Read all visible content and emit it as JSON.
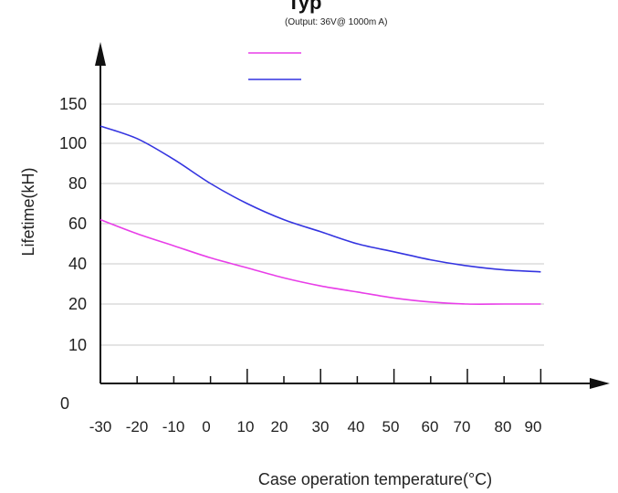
{
  "chart_data": {
    "type": "line",
    "title": "Typ",
    "subtitle": "(Output:  36V@  1000m  A)",
    "xlabel": "Case  operation  temperature(°C)",
    "ylabel": "Lifetime(kH)",
    "origin_label": "0",
    "x_ticks": [
      "-30",
      "-20",
      "-10",
      "0",
      "10",
      "20",
      "30",
      "40",
      "50",
      "60",
      "70",
      "80",
      "90"
    ],
    "y_ticks": [
      "10",
      "20",
      "40",
      "60",
      "80",
      "100",
      "150"
    ],
    "grid": true,
    "legend": {
      "placement": "top-center",
      "entries": [
        {
          "color": "#e83ee8"
        },
        {
          "color": "#3434e0"
        }
      ]
    },
    "series": [
      {
        "color": "#e83ee8",
        "x": [
          -30,
          -20,
          -10,
          0,
          10,
          20,
          30,
          40,
          50,
          60,
          70,
          80,
          90
        ],
        "y": [
          62,
          55,
          49,
          43,
          38,
          33,
          29,
          26,
          23,
          21,
          20,
          20,
          20
        ]
      },
      {
        "color": "#3434e0",
        "x": [
          -30,
          -20,
          -10,
          0,
          10,
          20,
          30,
          40,
          50,
          60,
          70,
          80,
          90
        ],
        "y": [
          122,
          106,
          92,
          80,
          70,
          62,
          56,
          50,
          46,
          42,
          39,
          37,
          36
        ]
      }
    ]
  }
}
